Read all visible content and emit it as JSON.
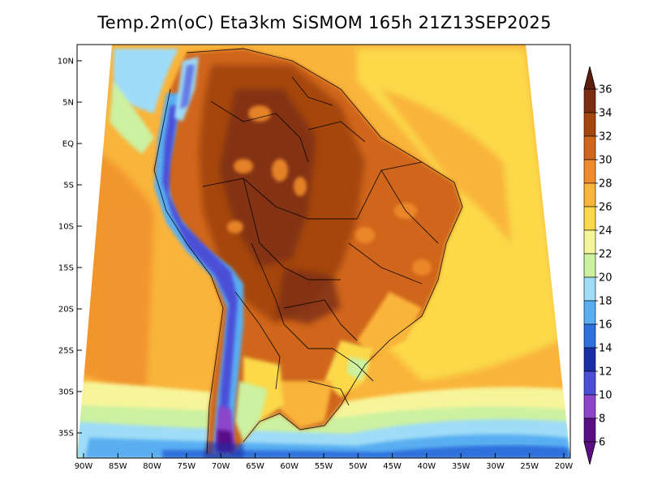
{
  "title": "Temp.2m(oC) Eta3km SiSMOM 165h 21Z13SEP2025",
  "lat_labels": [
    "10N",
    "5N",
    "EQ",
    "5S",
    "10S",
    "15S",
    "20S",
    "25S",
    "30S",
    "35S"
  ],
  "lon_labels": [
    "90W",
    "85W",
    "80W",
    "75W",
    "70W",
    "65W",
    "60W",
    "55W",
    "50W",
    "45W",
    "40W",
    "35W",
    "30W",
    "25W",
    "20W"
  ],
  "colorbar": {
    "values": [
      "36",
      "34",
      "32",
      "30",
      "28",
      "26",
      "24",
      "22",
      "20",
      "18",
      "16",
      "14",
      "12",
      "10",
      "8",
      "6"
    ],
    "colors": [
      "#5c1e0e",
      "#7c2d12",
      "#a5460f",
      "#d0661c",
      "#ef8b2c",
      "#f9b43b",
      "#fbd94a",
      "#f7f59a",
      "#ccf1a0",
      "#9fdcf7",
      "#58aef1",
      "#2f70dc",
      "#1a2fa7",
      "#4b4fd8",
      "#8d45c9",
      "#5a0f86"
    ],
    "arrow_top_color": "#5c1e0e",
    "arrow_bottom_color": "#5a0f86"
  },
  "chart_data": {
    "type": "heatmap",
    "title": "Temp.2m(oC) Eta3km SiSMOM 165h 21Z13SEP2025",
    "x_ticks": [
      "90W",
      "85W",
      "80W",
      "75W",
      "70W",
      "65W",
      "60W",
      "55W",
      "50W",
      "45W",
      "40W",
      "35W",
      "30W",
      "25W",
      "20W"
    ],
    "y_ticks": [
      "10N",
      "5N",
      "EQ",
      "5S",
      "10S",
      "15S",
      "20S",
      "25S",
      "30S",
      "35S"
    ],
    "xlim": [
      -90,
      -20
    ],
    "ylim": [
      -38,
      11
    ],
    "colorbar_levels": [
      6,
      8,
      10,
      12,
      14,
      16,
      18,
      20,
      22,
      24,
      26,
      28,
      30,
      32,
      34,
      36
    ],
    "colorbar_units": "oC"
  }
}
